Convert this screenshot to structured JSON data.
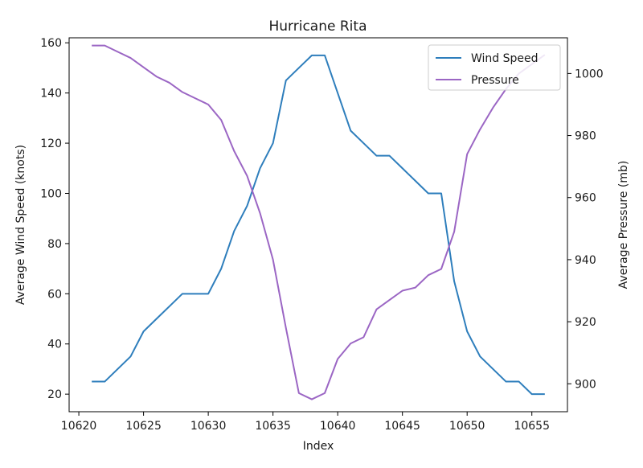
{
  "chart_data": {
    "type": "line",
    "title": "Hurricane Rita",
    "xlabel": "Index",
    "ylabel": "Average Wind Speed (knots)",
    "y2label": "Average Pressure (mb)",
    "xlim": [
      10619.25,
      10657.75
    ],
    "ylim": [
      13,
      162
    ],
    "y2lim": [
      891,
      1011.5
    ],
    "xticks": [
      10620,
      10625,
      10630,
      10635,
      10640,
      10645,
      10650,
      10655
    ],
    "yticks": [
      20,
      40,
      60,
      80,
      100,
      120,
      140,
      160
    ],
    "y2ticks": [
      900,
      920,
      940,
      960,
      980,
      1000
    ],
    "grid": false,
    "legend_position": "top-right",
    "x": [
      10621,
      10622,
      10623,
      10624,
      10625,
      10626,
      10627,
      10628,
      10629,
      10630,
      10631,
      10632,
      10633,
      10634,
      10635,
      10636,
      10637,
      10638,
      10639,
      10640,
      10641,
      10642,
      10643,
      10644,
      10645,
      10646,
      10647,
      10648,
      10649,
      10650,
      10651,
      10652,
      10653,
      10654,
      10655,
      10656
    ],
    "series": [
      {
        "name": "Wind Speed",
        "axis": "left",
        "color": "#2e7ebc",
        "values": [
          25,
          25,
          30,
          35,
          45,
          50,
          55,
          60,
          60,
          60,
          70,
          85,
          95,
          110,
          120,
          145,
          150,
          155,
          155,
          140,
          125,
          120,
          115,
          115,
          110,
          105,
          100,
          100,
          65,
          45,
          35,
          30,
          25,
          25,
          20,
          20
        ]
      },
      {
        "name": "Pressure",
        "axis": "right",
        "color": "#9b66c4",
        "values": [
          1009,
          1009,
          1007,
          1005,
          1002,
          999,
          997,
          994,
          992,
          990,
          985,
          975,
          967,
          955,
          940,
          918,
          897,
          895,
          897,
          908,
          913,
          915,
          924,
          927,
          930,
          931,
          935,
          937,
          949,
          974,
          982,
          989,
          995,
          1000,
          1003,
          1006
        ]
      }
    ]
  }
}
